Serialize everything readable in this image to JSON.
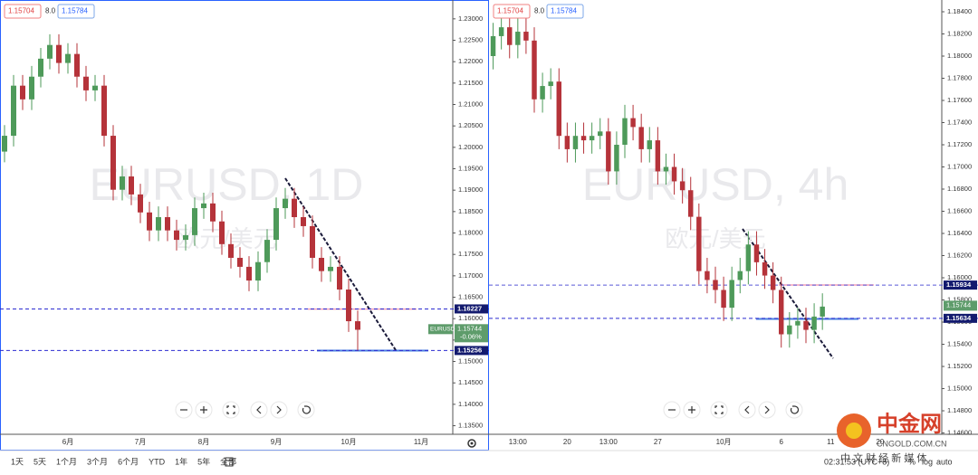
{
  "chart_data": [
    {
      "type": "candlestick",
      "symbol": "EURUSD",
      "watermark": "EURUSD, 1D",
      "watermark_sub": "欧元/美元",
      "bid": 1.15704,
      "spread": {
        "value": 8,
        "label": "8.0"
      },
      "ask": 1.15784,
      "up_color": "#4e9a5a",
      "down_color": "#b5333a",
      "categories": [
        null,
        null,
        null,
        null,
        null,
        null,
        null,
        "6月",
        null,
        null,
        null,
        null,
        null,
        null,
        null,
        "7月",
        null,
        null,
        null,
        null,
        null,
        null,
        "8月",
        null,
        null,
        null,
        null,
        null,
        null,
        null,
        "9月",
        null,
        null,
        null,
        null,
        null,
        null,
        null,
        "10月",
        null,
        null,
        null,
        null,
        null,
        null,
        null,
        "11月",
        null,
        null,
        null
      ],
      "open": [
        1.199,
        1.2027,
        1.2144,
        1.2112,
        1.2165,
        1.2207,
        1.2239,
        1.2197,
        1.2218,
        1.2165,
        1.2133,
        1.2144,
        1.2027,
        1.1901,
        1.1932,
        1.189,
        1.1848,
        1.1806,
        1.1837,
        1.1806,
        1.1784,
        1.1795,
        1.1858,
        1.1869,
        1.1827,
        1.1774,
        1.1742,
        1.1721,
        1.1689,
        1.1732,
        1.1784,
        1.1858,
        1.188,
        1.1837,
        1.1816,
        1.1742,
        1.1711,
        1.1721,
        1.1668,
        1.1594,
        null,
        null,
        null,
        null,
        null,
        null,
        null,
        null,
        null,
        null
      ],
      "high": [
        1.2052,
        1.2169,
        1.2169,
        1.219,
        1.2232,
        1.2264,
        1.2264,
        1.2243,
        1.2243,
        1.219,
        1.2169,
        1.2169,
        1.2052,
        1.1957,
        1.1957,
        1.1915,
        1.1873,
        1.1862,
        1.1862,
        1.1831,
        1.182,
        1.1883,
        1.1894,
        1.1894,
        1.1852,
        1.1799,
        1.1767,
        1.1746,
        1.1757,
        1.1809,
        1.1883,
        1.1905,
        1.1905,
        1.1862,
        1.1841,
        1.1767,
        1.1746,
        1.1746,
        1.1693,
        1.1619,
        null,
        null,
        null,
        null,
        null,
        null,
        null,
        null,
        null,
        null
      ],
      "low": [
        1.1965,
        1.2002,
        1.2087,
        1.2087,
        1.214,
        1.2182,
        1.2172,
        1.2172,
        1.214,
        1.2108,
        1.2108,
        1.2002,
        1.1876,
        1.1876,
        1.1865,
        1.1823,
        1.1781,
        1.1781,
        1.1781,
        1.1759,
        1.1759,
        1.177,
        1.1833,
        1.1802,
        1.1749,
        1.1717,
        1.1696,
        1.1664,
        1.1664,
        1.1707,
        1.1759,
        1.1833,
        1.1812,
        1.1791,
        1.1717,
        1.1686,
        1.1686,
        1.1643,
        1.1569,
        1.1526,
        null,
        null,
        null,
        null,
        null,
        null,
        null,
        null,
        null,
        null
      ],
      "close": [
        1.2027,
        1.2144,
        1.2112,
        1.2165,
        1.2207,
        1.2239,
        1.2197,
        1.2218,
        1.2165,
        1.2133,
        1.2144,
        1.2027,
        1.1901,
        1.1932,
        1.189,
        1.1848,
        1.1806,
        1.1837,
        1.1806,
        1.1784,
        1.1795,
        1.1858,
        1.1869,
        1.1827,
        1.1774,
        1.1742,
        1.1721,
        1.1689,
        1.1732,
        1.1784,
        1.1858,
        1.188,
        1.1837,
        1.1816,
        1.1742,
        1.1711,
        1.1721,
        1.1668,
        1.1594,
        1.1574,
        null,
        null,
        null,
        null,
        null,
        null,
        null,
        null,
        null,
        null
      ],
      "ylim": [
        1.133,
        1.2344
      ],
      "yticks": [
        {
          "value": 1.23,
          "label": "1.23000"
        },
        {
          "value": 1.225,
          "label": "1.22500"
        },
        {
          "value": 1.22,
          "label": "1.22000"
        },
        {
          "value": 1.215,
          "label": "1.21500"
        },
        {
          "value": 1.21,
          "label": "1.21000"
        },
        {
          "value": 1.205,
          "label": "1.20500"
        },
        {
          "value": 1.2,
          "label": "1.20000"
        },
        {
          "value": 1.195,
          "label": "1.19500"
        },
        {
          "value": 1.19,
          "label": "1.19000"
        },
        {
          "value": 1.185,
          "label": "1.18500"
        },
        {
          "value": 1.18,
          "label": "1.18000"
        },
        {
          "value": 1.175,
          "label": "1.17500"
        },
        {
          "value": 1.17,
          "label": "1.17000"
        },
        {
          "value": 1.165,
          "label": "1.16500"
        },
        {
          "value": 1.16,
          "label": "1.16000"
        },
        {
          "value": 1.155,
          "label": "1.15500"
        },
        {
          "value": 1.15,
          "label": "1.15000"
        },
        {
          "value": 1.145,
          "label": "1.14500"
        },
        {
          "value": 1.14,
          "label": "1.14000"
        },
        {
          "value": 1.135,
          "label": "1.13500"
        }
      ],
      "grid": false,
      "levels": [
        {
          "value": 1.16227,
          "color": "#2b2bd0"
        },
        {
          "value": 1.15256,
          "color": "#2b2bd0"
        }
      ],
      "level_label_color": "#131a6e",
      "last": {
        "value": 1.15744,
        "change": {
          "value": -0.06,
          "label": "-0.06%"
        },
        "color": "#5e9c6b"
      }
    },
    {
      "type": "candlestick",
      "watermark": "EURUSD, 4h",
      "watermark_sub": "欧元/美元",
      "bid": 1.15704,
      "spread": {
        "value": 8,
        "label": "8.0"
      },
      "ask": 1.15784,
      "up_color": "#4e9a5a",
      "down_color": "#b5333a",
      "categories": [
        null,
        null,
        null,
        "13:00",
        null,
        null,
        null,
        null,
        null,
        "20",
        null,
        null,
        null,
        null,
        "13:00",
        null,
        null,
        null,
        null,
        null,
        "27",
        null,
        null,
        null,
        null,
        null,
        null,
        null,
        "10月",
        null,
        null,
        null,
        null,
        null,
        null,
        "6",
        null,
        null,
        null,
        null,
        null,
        "11",
        null,
        null,
        null,
        null,
        null,
        "20",
        null,
        null,
        null,
        null,
        null,
        null,
        null
      ],
      "open": [
        1.18,
        1.1818,
        1.1826,
        1.181,
        1.1822,
        1.1814,
        1.1761,
        1.1773,
        1.1777,
        1.1728,
        1.1716,
        1.1728,
        1.1724,
        1.1728,
        1.1732,
        1.1696,
        1.172,
        1.1744,
        1.1736,
        1.1716,
        1.1724,
        1.1696,
        1.17,
        1.1687,
        1.1679,
        1.1655,
        1.1606,
        1.1598,
        1.1589,
        1.1573,
        1.1598,
        1.1606,
        1.163,
        1.1614,
        1.1602,
        1.1589,
        1.1549,
        1.1557,
        1.1561,
        1.1553,
        1.1565,
        null,
        null,
        null,
        null,
        null,
        null,
        null,
        null,
        null,
        null,
        null,
        null,
        null,
        null
      ],
      "high": [
        1.183,
        1.1838,
        1.1838,
        1.1834,
        1.1834,
        1.1826,
        1.1785,
        1.1789,
        1.1789,
        1.174,
        1.174,
        1.174,
        1.174,
        1.1744,
        1.1744,
        1.1732,
        1.1756,
        1.1756,
        1.1748,
        1.1736,
        1.1736,
        1.1712,
        1.1712,
        1.1699,
        1.1691,
        1.1667,
        1.1618,
        1.161,
        1.1601,
        1.161,
        1.1618,
        1.1642,
        1.1642,
        1.1626,
        1.1614,
        1.1601,
        1.1569,
        1.1573,
        1.1573,
        1.1577,
        1.1586,
        null,
        null,
        null,
        null,
        null,
        null,
        null,
        null,
        null,
        null,
        null,
        null,
        null,
        null
      ],
      "low": [
        1.1788,
        1.1806,
        1.1798,
        1.1798,
        1.1802,
        1.1749,
        1.1749,
        1.1761,
        1.1716,
        1.1704,
        1.1704,
        1.1712,
        1.1712,
        1.1716,
        1.1684,
        1.1684,
        1.1708,
        1.1724,
        1.1704,
        1.1704,
        1.1684,
        1.1684,
        1.1675,
        1.1667,
        1.1643,
        1.1594,
        1.1586,
        1.1577,
        1.1561,
        1.1561,
        1.1586,
        1.1594,
        1.1602,
        1.159,
        1.1577,
        1.1537,
        1.1537,
        1.1545,
        1.1541,
        1.1541,
        1.1553,
        null,
        null,
        null,
        null,
        null,
        null,
        null,
        null,
        null,
        null,
        null,
        null,
        null,
        null
      ],
      "close": [
        1.1818,
        1.1826,
        1.181,
        1.1822,
        1.1814,
        1.1761,
        1.1773,
        1.1777,
        1.1728,
        1.1716,
        1.1728,
        1.1724,
        1.1728,
        1.1732,
        1.1696,
        1.172,
        1.1744,
        1.1736,
        1.1716,
        1.1724,
        1.1696,
        1.17,
        1.1687,
        1.1679,
        1.1655,
        1.1606,
        1.1598,
        1.1589,
        1.1573,
        1.1598,
        1.1606,
        1.163,
        1.1614,
        1.1602,
        1.1589,
        1.1549,
        1.1557,
        1.1561,
        1.1553,
        1.1565,
        1.1574,
        null,
        null,
        null,
        null,
        null,
        null,
        null,
        null,
        null,
        null,
        null,
        null,
        null,
        null
      ],
      "ylim": [
        1.14588,
        1.18506
      ],
      "yticks": [
        {
          "value": 1.184,
          "label": "1.18400"
        },
        {
          "value": 1.182,
          "label": "1.18200"
        },
        {
          "value": 1.18,
          "label": "1.18000"
        },
        {
          "value": 1.178,
          "label": "1.17800"
        },
        {
          "value": 1.176,
          "label": "1.17600"
        },
        {
          "value": 1.174,
          "label": "1.17400"
        },
        {
          "value": 1.172,
          "label": "1.17200"
        },
        {
          "value": 1.17,
          "label": "1.17000"
        },
        {
          "value": 1.168,
          "label": "1.16800"
        },
        {
          "value": 1.166,
          "label": "1.16600"
        },
        {
          "value": 1.164,
          "label": "1.16400"
        },
        {
          "value": 1.162,
          "label": "1.16200"
        },
        {
          "value": 1.16,
          "label": "1.16000"
        },
        {
          "value": 1.158,
          "label": "1.15800"
        },
        {
          "value": 1.156,
          "label": "1.15600"
        },
        {
          "value": 1.154,
          "label": "1.15400"
        },
        {
          "value": 1.152,
          "label": "1.15200"
        },
        {
          "value": 1.15,
          "label": "1.15000"
        },
        {
          "value": 1.148,
          "label": "1.14800"
        },
        {
          "value": 1.146,
          "label": "1.14600"
        }
      ],
      "grid": false,
      "levels": [
        {
          "value": 1.15934,
          "color": "#5a5ad8"
        },
        {
          "value": 1.15634,
          "color": "#2b2bd0"
        }
      ],
      "level_label_color": "#131a6e",
      "last": {
        "value": 1.15744,
        "color": "#5e9c6b"
      }
    }
  ],
  "toolbar": {
    "ranges": [
      "1天",
      "5天",
      "1个月",
      "3个月",
      "6个月",
      "YTD",
      "1年",
      "5年",
      "全部"
    ],
    "time": "02:31:53 (UTC+8)",
    "scale_buttons": [
      "%",
      "log",
      "auto"
    ]
  },
  "logo": {
    "name": "中金网",
    "site": "CNGOLD.COM.CN",
    "slogan": "中 文 财 经 新 媒 体"
  }
}
